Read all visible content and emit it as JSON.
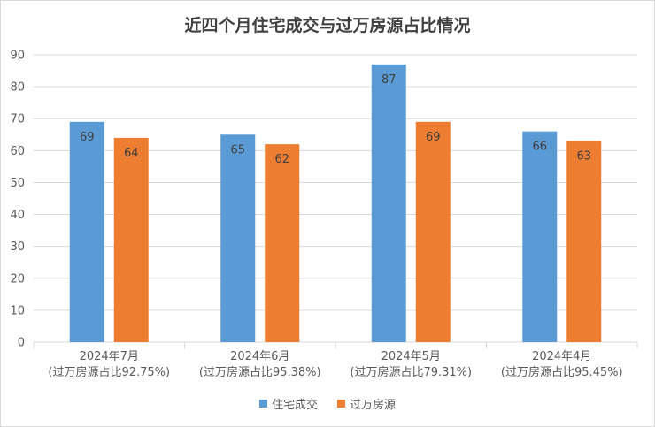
{
  "chart_data": {
    "type": "bar",
    "title": "近四个月住宅成交与过万房源占比情况",
    "categories": [
      [
        "2024年7月",
        "(过万房源占比92.75%)"
      ],
      [
        "2024年6月",
        "(过万房源占比95.38%)"
      ],
      [
        "2024年5月",
        "(过万房源占比79.31%)"
      ],
      [
        "2024年4月",
        "(过万房源占比95.45%)"
      ]
    ],
    "series": [
      {
        "name": "住宅成交",
        "color": "#5b9bd5",
        "values": [
          69,
          65,
          87,
          66
        ]
      },
      {
        "name": "过万房源",
        "color": "#ed7d31",
        "values": [
          64,
          62,
          69,
          63
        ]
      }
    ],
    "ylim": [
      0,
      90
    ],
    "yticks": [
      0,
      10,
      20,
      30,
      40,
      50,
      60,
      70,
      80,
      90
    ],
    "grid": true,
    "legend": "bottom"
  }
}
